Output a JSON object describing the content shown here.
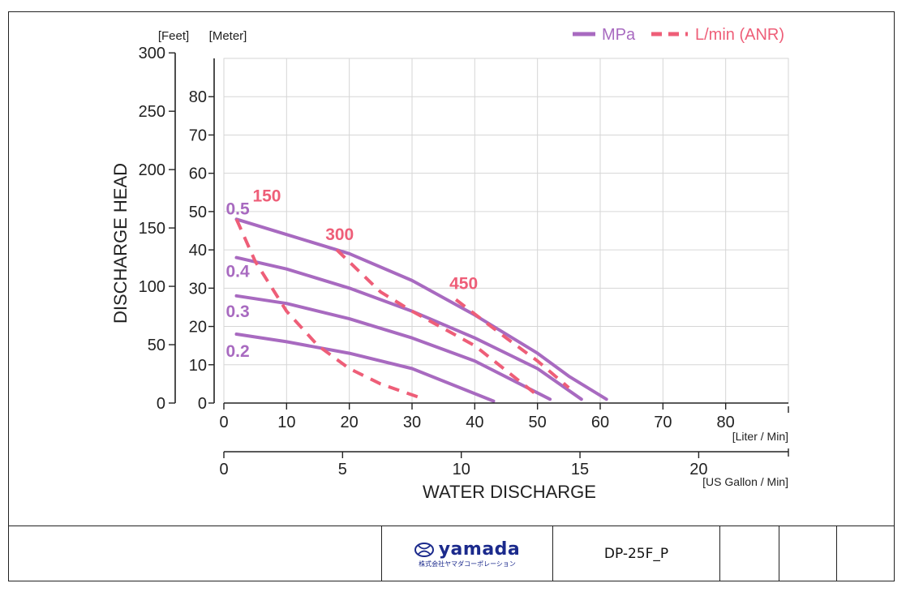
{
  "chart_data": {
    "type": "line",
    "units": {
      "feet_label": "[Feet]",
      "meter_label": "[Meter]"
    },
    "ylabel": "DISCHARGE HEAD",
    "xlabel": "WATER DISCHARGE",
    "x_unit_lpm": "[Liter / Min]",
    "x_unit_gpm": "[US Gallon / Min]",
    "xlim_lpm": [
      0,
      90
    ],
    "ylim_m": [
      0,
      90
    ],
    "ticks_feet": [
      "0",
      "50",
      "100",
      "150",
      "200",
      "250",
      "300"
    ],
    "ticks_meter": [
      "0",
      "10",
      "20",
      "30",
      "40",
      "50",
      "60",
      "70",
      "80"
    ],
    "ticks_lpm": [
      "0",
      "10",
      "20",
      "30",
      "40",
      "50",
      "60",
      "70",
      "80"
    ],
    "ticks_gpm": [
      "0",
      "5",
      "10",
      "15",
      "20"
    ],
    "legend": {
      "mpa_label": "MPa",
      "lmin_label": "L/min (ANR)",
      "position": "top-right"
    },
    "grid": true,
    "colors": {
      "mpa": "#a86ac0",
      "lmin": "#ee5e78",
      "grid": "#d6d6d6",
      "axis": "#222222"
    },
    "series": [
      {
        "name": "0.5",
        "kind": "MPa",
        "x": [
          2,
          10,
          20,
          30,
          40,
          50,
          55,
          61
        ],
        "y": [
          48,
          44,
          39,
          32,
          23,
          13,
          7,
          1
        ]
      },
      {
        "name": "0.4",
        "kind": "MPa",
        "x": [
          2,
          10,
          20,
          30,
          40,
          50,
          57
        ],
        "y": [
          38,
          35,
          30,
          24,
          17,
          9,
          1
        ]
      },
      {
        "name": "0.3",
        "kind": "MPa",
        "x": [
          2,
          10,
          20,
          30,
          40,
          52
        ],
        "y": [
          28,
          26,
          22,
          17,
          11,
          1
        ]
      },
      {
        "name": "0.2",
        "kind": "MPa",
        "x": [
          2,
          10,
          20,
          30,
          43
        ],
        "y": [
          18,
          16,
          13,
          9,
          0.5
        ]
      },
      {
        "name": "150",
        "kind": "L/min (ANR)",
        "x": [
          2,
          5,
          10,
          15,
          20,
          25,
          32
        ],
        "y": [
          48,
          37,
          24,
          15,
          9,
          5,
          1
        ]
      },
      {
        "name": "300",
        "kind": "L/min (ANR)",
        "x": [
          18,
          25,
          30,
          40,
          50
        ],
        "y": [
          40,
          29,
          24,
          15,
          2
        ]
      },
      {
        "name": "450",
        "kind": "L/min (ANR)",
        "x": [
          37,
          45,
          50,
          55
        ],
        "y": [
          27,
          17,
          11,
          4
        ]
      }
    ]
  },
  "title_block": {
    "logo_text": "yamada",
    "logo_subtext": "株式会社ヤマダコーポレーション",
    "drawing_no": "DP-25F_P"
  }
}
